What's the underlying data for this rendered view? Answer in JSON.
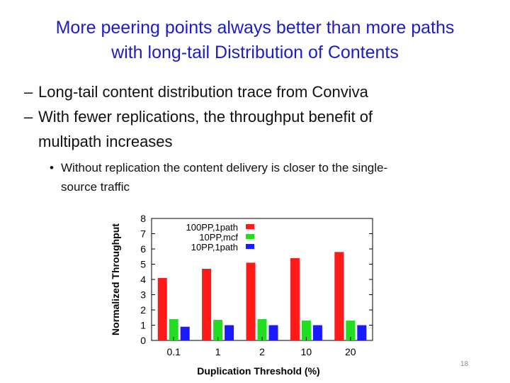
{
  "slide": {
    "title_line1": "More peering points always better than more paths",
    "title_line2": "with long-tail Distribution of Contents",
    "bullets": [
      "Long-tail content distribution trace from Conviva",
      "With fewer replications, the throughput benefit of multipath increases"
    ],
    "bullet2_line1": "With fewer replications, the throughput benefit of",
    "bullet2_line2": "multipath increases",
    "sub_bullet": "Without replication the content delivery is closer to the single-source traffic",
    "sub_bullet_line1": "Without replication the content delivery is closer to the single-",
    "sub_bullet_line2": "source traffic",
    "dash_glyph": "–",
    "dot_glyph": "•",
    "page_number": "18"
  },
  "chart_data": {
    "type": "bar",
    "title": "",
    "xlabel": "Duplication Threshold (%)",
    "ylabel": "Normalized Throughput",
    "categories": [
      "0.1",
      "1",
      "2",
      "10",
      "20"
    ],
    "ylim": [
      0,
      8
    ],
    "yticks": [
      "0",
      "1",
      "2",
      "3",
      "4",
      "5",
      "6",
      "7",
      "8"
    ],
    "grid": false,
    "legend_position": "top-left",
    "series": [
      {
        "name": "100PP,1path",
        "color": "#ff1a1a",
        "values": [
          4.1,
          4.7,
          5.1,
          5.4,
          5.8
        ]
      },
      {
        "name": "10PP,mcf",
        "color": "#22dd22",
        "values": [
          1.4,
          1.35,
          1.4,
          1.3,
          1.3
        ]
      },
      {
        "name": "10PP,1path",
        "color": "#1a1aff",
        "values": [
          0.9,
          1.0,
          1.0,
          1.0,
          1.0
        ]
      }
    ]
  }
}
